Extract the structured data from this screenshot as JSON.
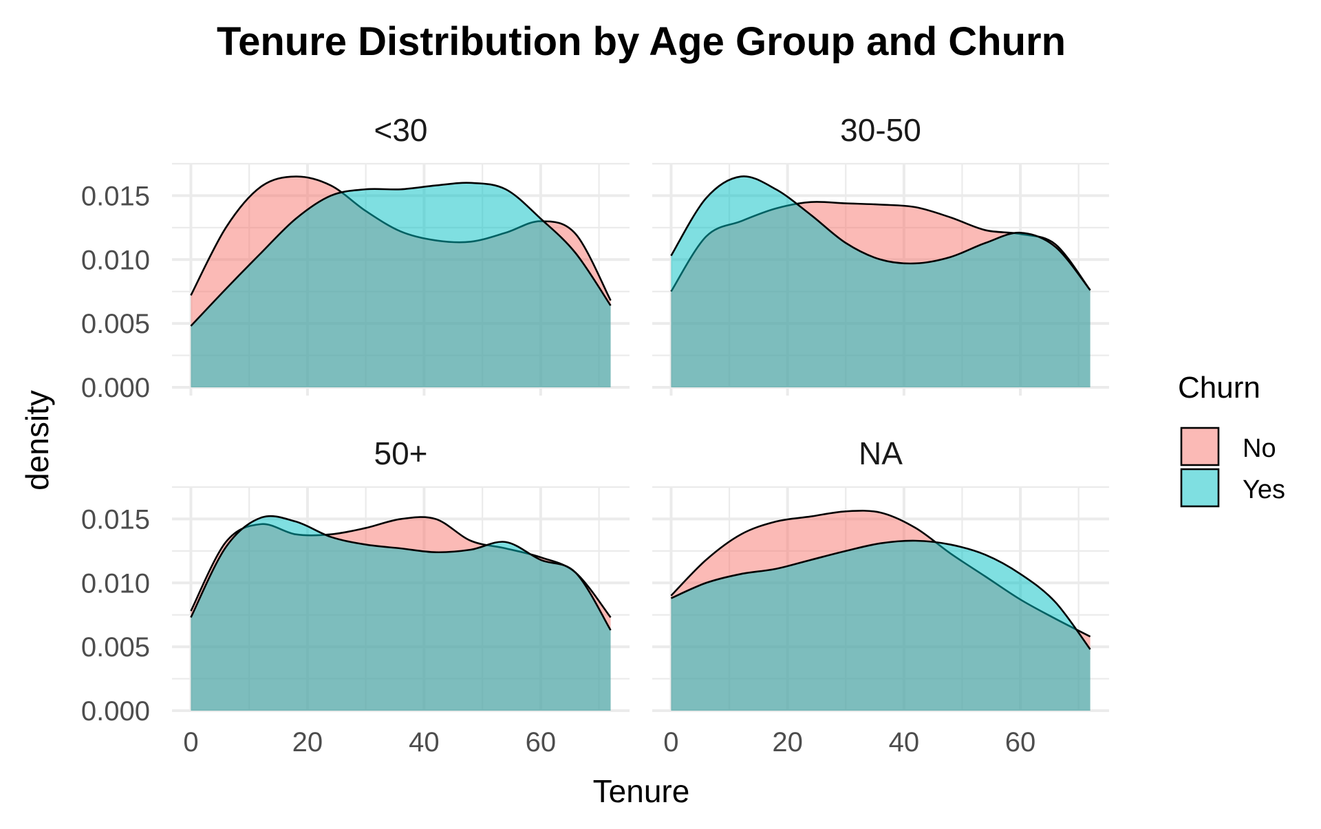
{
  "chart_data": {
    "type": "area",
    "title": "Tenure Distribution by Age Group and Churn",
    "xlabel": "Tenure",
    "ylabel": "density",
    "xlim": [
      0,
      72
    ],
    "ylim": [
      0,
      0.0175
    ],
    "x_ticks": [
      "0",
      "20",
      "40",
      "60"
    ],
    "y_ticks": [
      "0.000",
      "0.005",
      "0.010",
      "0.015"
    ],
    "grid": true,
    "legend": {
      "title": "Churn",
      "placement": "right",
      "entries": [
        {
          "label": "No",
          "color": "#F8766D"
        },
        {
          "label": "Yes",
          "color": "#00BFC4"
        }
      ]
    },
    "colors": {
      "No": "#F8766D",
      "Yes": "#00BFC4"
    },
    "x": [
      0,
      6,
      12,
      18,
      24,
      30,
      36,
      42,
      48,
      54,
      60,
      66,
      72
    ],
    "panels": [
      {
        "label": "<30",
        "series": [
          {
            "name": "No",
            "values": [
              0.0072,
              0.0125,
              0.0157,
              0.0165,
              0.0158,
              0.0138,
              0.0122,
              0.0115,
              0.0114,
              0.0121,
              0.013,
              0.012,
              0.0068
            ]
          },
          {
            "name": "Yes",
            "values": [
              0.0048,
              0.0077,
              0.0105,
              0.0132,
              0.015,
              0.0155,
              0.0155,
              0.0158,
              0.016,
              0.0155,
              0.0132,
              0.0105,
              0.0064
            ]
          }
        ]
      },
      {
        "label": "30-50",
        "series": [
          {
            "name": "No",
            "values": [
              0.0075,
              0.0118,
              0.013,
              0.014,
              0.0145,
              0.0144,
              0.0143,
              0.0141,
              0.0133,
              0.0123,
              0.012,
              0.0112,
              0.0076
            ]
          },
          {
            "name": "Yes",
            "values": [
              0.0103,
              0.0148,
              0.0165,
              0.0155,
              0.0135,
              0.0113,
              0.01,
              0.0097,
              0.0102,
              0.0113,
              0.0121,
              0.011,
              0.0076
            ]
          }
        ]
      },
      {
        "label": "50+",
        "series": [
          {
            "name": "No",
            "values": [
              0.0078,
              0.0132,
              0.0146,
              0.0138,
              0.0138,
              0.0143,
              0.015,
              0.015,
              0.0133,
              0.0127,
              0.012,
              0.0108,
              0.0073
            ]
          },
          {
            "name": "Yes",
            "values": [
              0.0073,
              0.0128,
              0.0151,
              0.0148,
              0.0136,
              0.013,
              0.0127,
              0.0124,
              0.0126,
              0.0132,
              0.0118,
              0.0108,
              0.0063
            ]
          }
        ]
      },
      {
        "label": "NA",
        "series": [
          {
            "name": "No",
            "values": [
              0.009,
              0.0118,
              0.0138,
              0.0148,
              0.0152,
              0.0156,
              0.0155,
              0.0143,
              0.0123,
              0.0105,
              0.0087,
              0.0072,
              0.0058
            ]
          },
          {
            "name": "Yes",
            "values": [
              0.0088,
              0.01,
              0.0107,
              0.0111,
              0.0118,
              0.0125,
              0.0131,
              0.0133,
              0.013,
              0.0122,
              0.0107,
              0.0085,
              0.0048
            ]
          }
        ]
      }
    ]
  }
}
